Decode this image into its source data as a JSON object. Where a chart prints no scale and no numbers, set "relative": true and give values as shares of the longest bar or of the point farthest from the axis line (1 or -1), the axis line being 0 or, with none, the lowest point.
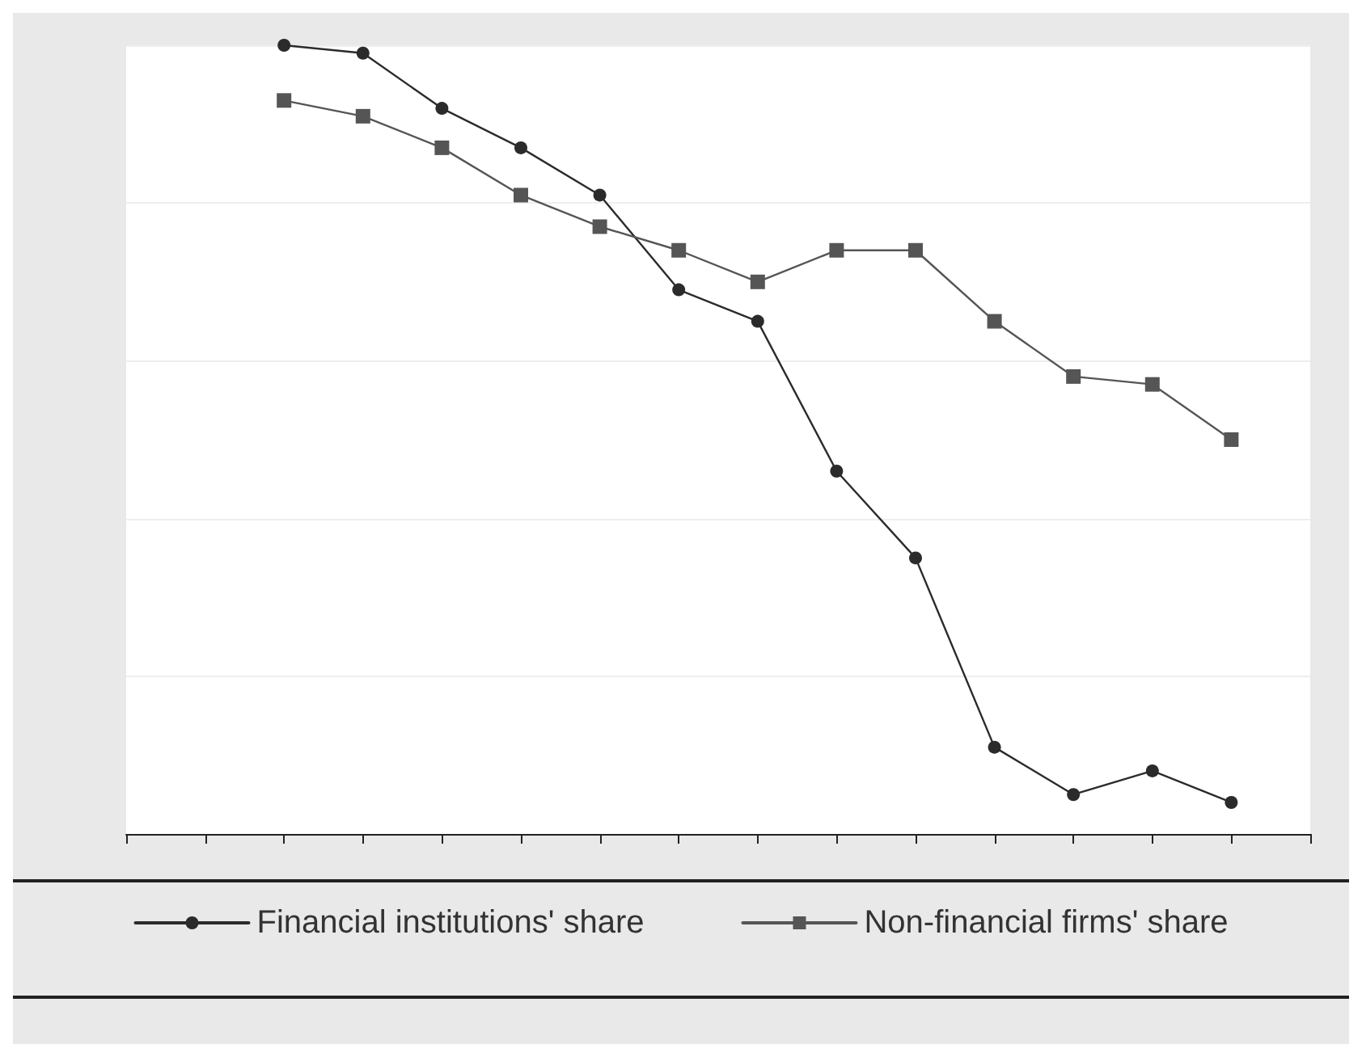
{
  "chart_data": {
    "type": "line",
    "relative": true,
    "categories": [
      null,
      null,
      null,
      null,
      null,
      null,
      null,
      null,
      null,
      null,
      null,
      null,
      null,
      null,
      null,
      null
    ],
    "series": [
      {
        "name": "Financial institutions' share",
        "color": "#2b2b2b",
        "marker": "circle",
        "values": [
          null,
          null,
          1,
          0.99,
          0.92,
          0.87,
          0.81,
          0.69,
          0.65,
          0.46,
          0.35,
          0.11,
          0.05,
          0.08,
          0.04,
          null
        ]
      },
      {
        "name": "Non-financial firms' share",
        "color": "#555555",
        "marker": "square",
        "values": [
          null,
          null,
          0.93,
          0.91,
          0.87,
          0.81,
          0.77,
          0.74,
          0.7,
          0.74,
          0.74,
          0.65,
          0.58,
          0.57,
          0.5,
          null
        ]
      }
    ],
    "grid": "y",
    "legend": "bottom",
    "line_style": "solid"
  }
}
